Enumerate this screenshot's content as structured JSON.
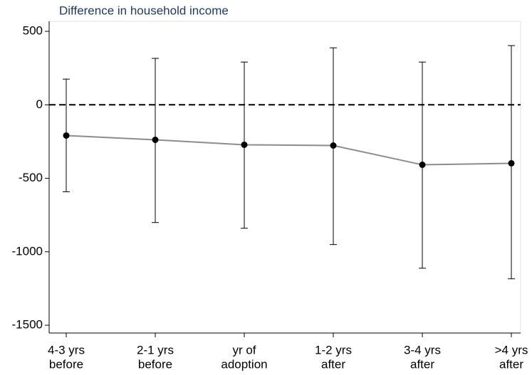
{
  "chart_data": {
    "type": "line",
    "title": "Difference in household income",
    "categories": [
      [
        "4-3 yrs",
        "before"
      ],
      [
        "2-1 yrs",
        "before"
      ],
      [
        "yr of",
        "adoption"
      ],
      [
        "1-2 yrs",
        "after"
      ],
      [
        "3-4 yrs",
        "after"
      ],
      [
        ">4 yrs",
        "after"
      ]
    ],
    "values": [
      -209,
      -238,
      -272,
      -277,
      -408,
      -398
    ],
    "ci_lower": [
      -592,
      -801,
      -840,
      -951,
      -1112,
      -1184
    ],
    "ci_upper": [
      175,
      316,
      291,
      388,
      291,
      403
    ],
    "color": "#8c8c8c",
    "marker_color": "#000000",
    "error_bar_color": "#000000",
    "ylim": [
      -1553,
      568
    ],
    "yticks": [
      -1500,
      -1000,
      -500,
      0,
      500
    ],
    "reference_line": 0,
    "grid": false
  }
}
